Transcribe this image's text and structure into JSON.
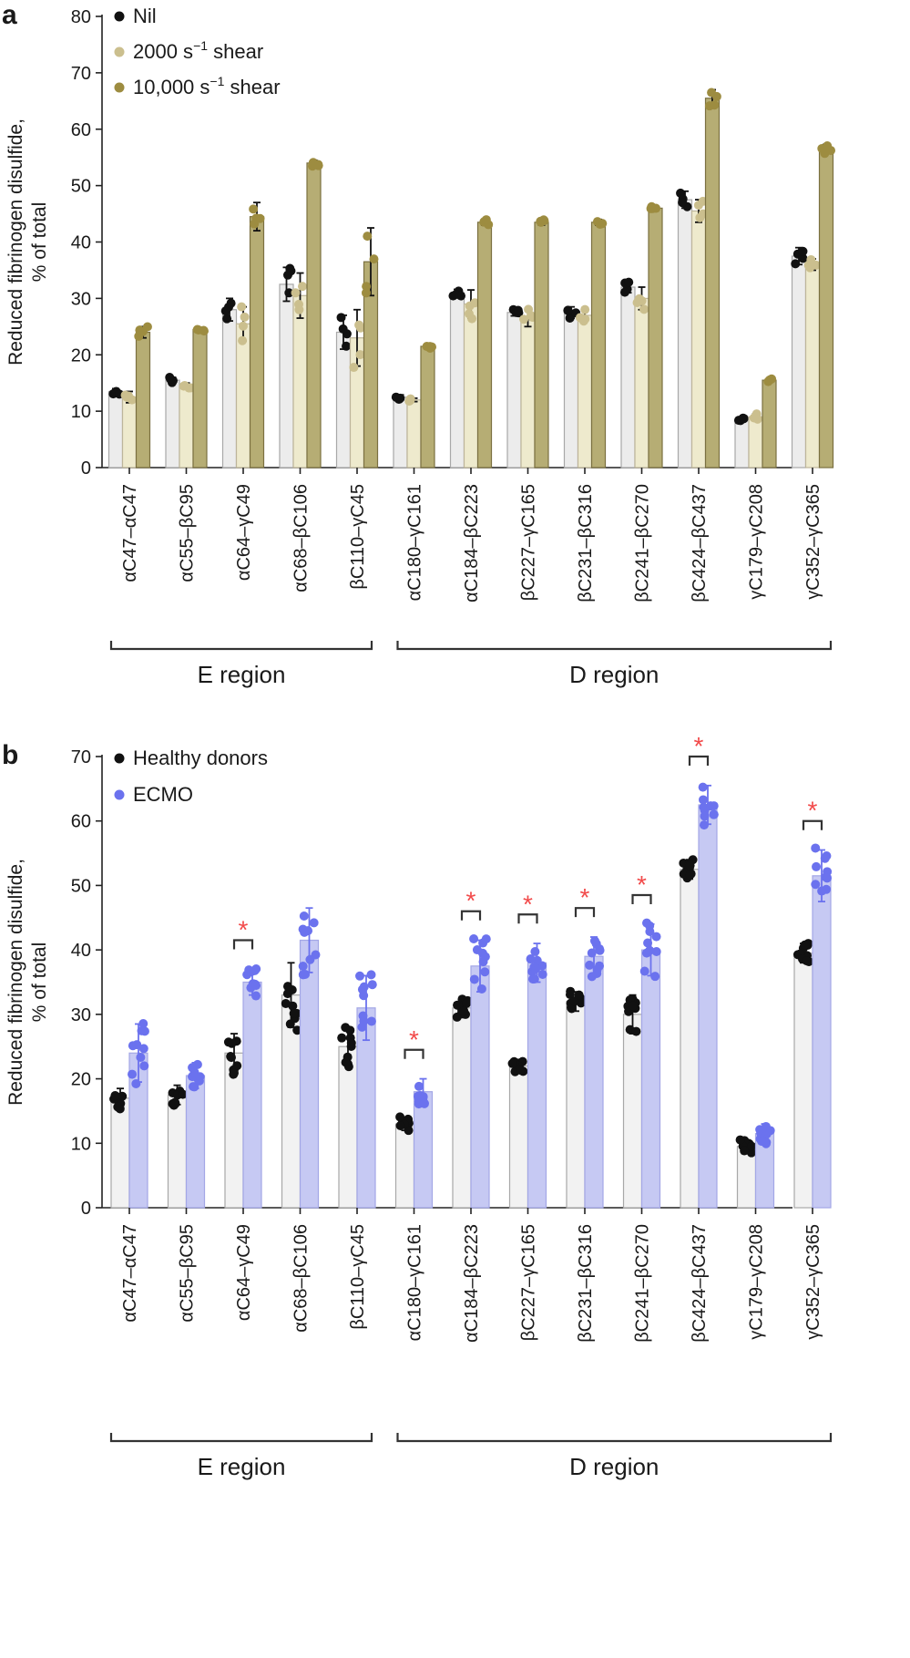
{
  "panels": [
    {
      "letter": "a",
      "chart_data": {
        "type": "bar",
        "ylabel_line1": "Reduced fibrinogen disulfide,",
        "ylabel_line2": "% of total",
        "ylim": [
          0,
          80
        ],
        "yticks": [
          0,
          10,
          20,
          30,
          40,
          50,
          60,
          70,
          80
        ],
        "categories": [
          "αC47–αC47",
          "αC55–βC95",
          "αC64–γC49",
          "αC68–βC106",
          "βC110–γC45",
          "αC180–γC161",
          "αC184–βC223",
          "βC227–γC165",
          "βC231–βC316",
          "βC241–βC270",
          "βC424–βC437",
          "γC179–γC208",
          "γC352–γC365"
        ],
        "series": [
          {
            "name": "Nil",
            "label_base": "Nil",
            "label_sup": "",
            "label_tail": "",
            "bar_color": "#ececec",
            "edge_color": "#a8a8a8",
            "dot_color": "#111111",
            "values": [
              13.5,
              15.5,
              28,
              32.5,
              24,
              12.5,
              31,
              27.5,
              27.5,
              32,
              47.5,
              8.5,
              37.5
            ],
            "errors": [
              0.5,
              0.5,
              2,
              3,
              3,
              0.4,
              0.6,
              0.6,
              1,
              1,
              1.5,
              0.3,
              1.5
            ]
          },
          {
            "name": "2000 s−1 shear",
            "label_base": "2000 s",
            "label_sup": "−1",
            "label_tail": " shear",
            "bar_color": "#eeeacd",
            "edge_color": "#bdb59a",
            "dot_color": "#cbbf8e",
            "values": [
              12.5,
              14.5,
              25.5,
              30.5,
              23,
              12,
              29,
              26.5,
              27,
              30,
              45.5,
              9,
              36
            ],
            "errors": [
              1,
              0.5,
              3,
              4,
              5,
              0.3,
              2.5,
              1.5,
              1,
              2,
              2,
              0.5,
              1
            ]
          },
          {
            "name": "10,000 s−1 shear",
            "label_base": "10,000 s",
            "label_sup": "−1",
            "label_tail": " shear",
            "bar_color": "#b6ad74",
            "edge_color": "#7a7040",
            "dot_color": "#9d8c40",
            "values": [
              24,
              24.5,
              44.5,
              54,
              36.5,
              21.5,
              43.5,
              43.5,
              43.5,
              46,
              65.5,
              15.5,
              56.5
            ],
            "errors": [
              1,
              0.3,
              2.5,
              0.5,
              6,
              0.3,
              0.5,
              0.5,
              0.5,
              0.3,
              1.5,
              0.3,
              0.8
            ]
          }
        ],
        "regions": [
          {
            "label": "E region",
            "from": 0,
            "to": 4
          },
          {
            "label": "D region",
            "from": 5,
            "to": 12
          }
        ]
      }
    },
    {
      "letter": "b",
      "chart_data": {
        "type": "bar",
        "ylabel_line1": "Reduced fibrinogen disulfide,",
        "ylabel_line2": "% of total",
        "ylim": [
          0,
          70
        ],
        "yticks": [
          0,
          10,
          20,
          30,
          40,
          50,
          60,
          70
        ],
        "categories": [
          "αC47–αC47",
          "αC55–βC95",
          "αC64–γC49",
          "αC68–βC106",
          "βC110–γC45",
          "αC180–γC161",
          "αC184–βC223",
          "βC227–γC165",
          "βC231–βC316",
          "βC241–βC270",
          "βC424–βC437",
          "γC179–γC208",
          "γC352–γC365"
        ],
        "series": [
          {
            "name": "Healthy donors",
            "label_base": "Healthy donors",
            "label_sup": "",
            "label_tail": "",
            "bar_color": "#f2f2f2",
            "edge_color": "#a8a8a8",
            "dot_color": "#111111",
            "values": [
              17,
              17.5,
              24,
              33,
              25,
              13,
              31,
              22,
              32,
              30,
              52.5,
              9.5,
              39.5
            ],
            "errors": [
              1.5,
              1.5,
              3,
              5,
              3,
              1,
              1.5,
              1,
              1.5,
              3,
              1.5,
              1,
              1.5
            ]
          },
          {
            "name": "ECMO",
            "label_base": "ECMO",
            "label_sup": "",
            "label_tail": "",
            "bar_color": "#c6c9f3",
            "edge_color": "#a3a7e6",
            "dot_color": "#6b72ee",
            "values": [
              24,
              20.5,
              35,
              41.5,
              31,
              18,
              37.5,
              38,
              39,
              40,
              62.5,
              11.5,
              51.5
            ],
            "errors": [
              4.5,
              2,
              2,
              5,
              5,
              2,
              4,
              3,
              3,
              4,
              3,
              1.5,
              4
            ]
          }
        ],
        "significance": [
          2,
          5,
          6,
          7,
          8,
          9,
          10,
          12
        ],
        "significance_marker": "*",
        "regions": [
          {
            "label": "E region",
            "from": 0,
            "to": 4
          },
          {
            "label": "D region",
            "from": 5,
            "to": 12
          }
        ]
      }
    }
  ]
}
